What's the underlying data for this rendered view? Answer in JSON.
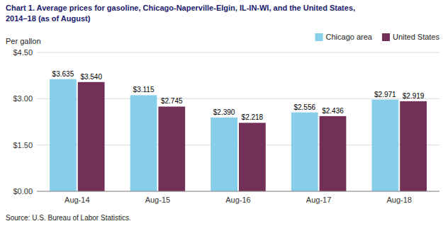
{
  "chart_data": {
    "type": "bar",
    "title": "Chart 1. Average prices for gasoline, Chicago-Naperville-Elgin, IL-IN-WI, and the United States,",
    "subtitle": "2014–18  (as of August)",
    "ylabel": "Per gallon",
    "annotations": [
      "Source: U.S. Bureau of Labor Statistics."
    ],
    "categories": [
      "Aug-14",
      "Aug-15",
      "Aug-16",
      "Aug-17",
      "Aug-18"
    ],
    "series": [
      {
        "name": "Chicago area",
        "color": "#87CEEB",
        "values": [
          3.635,
          3.115,
          2.39,
          2.556,
          2.971
        ],
        "value_labels": [
          "$3.635",
          "$3.115",
          "$2.390",
          "$2.556",
          "$2.971"
        ]
      },
      {
        "name": "United States",
        "color": "#722F57",
        "values": [
          3.54,
          2.745,
          2.218,
          2.436,
          2.919
        ],
        "value_labels": [
          "$3.540",
          "$2.745",
          "$2.218",
          "$2.436",
          "$2.919"
        ]
      }
    ],
    "ylim": [
      0,
      4.5
    ],
    "yticks": [
      {
        "value": 0.0,
        "label": "$0.00"
      },
      {
        "value": 1.5,
        "label": "$1.50"
      },
      {
        "value": 3.0,
        "label": "$3.00"
      },
      {
        "value": 4.5,
        "label": "$4.50"
      }
    ],
    "grid": true,
    "legend": "upper right",
    "data_labels": true
  }
}
